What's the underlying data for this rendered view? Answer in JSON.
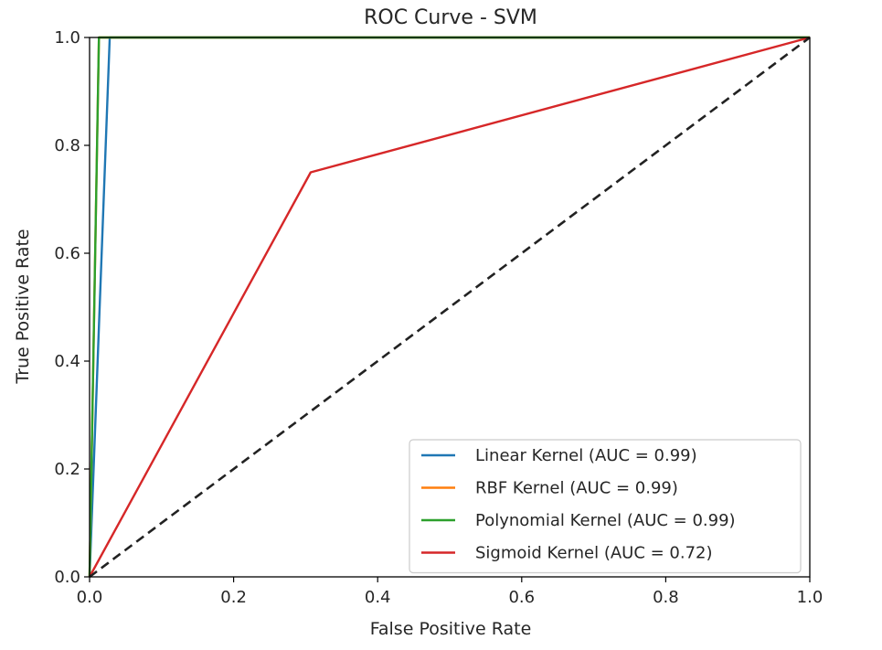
{
  "chart_data": {
    "type": "line",
    "title": "ROC Curve - SVM",
    "xlabel": "False Positive Rate",
    "ylabel": "True Positive Rate",
    "xlim": [
      0.0,
      1.0
    ],
    "ylim": [
      0.0,
      1.0
    ],
    "xticks": [
      "0.0",
      "0.2",
      "0.4",
      "0.6",
      "0.8",
      "1.0"
    ],
    "yticks": [
      "0.0",
      "0.2",
      "0.4",
      "0.6",
      "0.8",
      "1.0"
    ],
    "grid": false,
    "legend_position": "lower-right",
    "series": [
      {
        "name": "Linear Kernel (AUC = 0.99)",
        "color": "#1f77b4",
        "x": [
          0.0,
          0.028,
          1.0
        ],
        "y": [
          0.0,
          1.0,
          1.0
        ]
      },
      {
        "name": "RBF Kernel (AUC = 0.99)",
        "color": "#ff7f0e",
        "x": [
          0.0,
          0.013,
          1.0
        ],
        "y": [
          0.0,
          1.0,
          1.0
        ]
      },
      {
        "name": "Polynomial Kernel (AUC = 0.99)",
        "color": "#2ca02c",
        "x": [
          0.0,
          0.013,
          1.0
        ],
        "y": [
          0.0,
          1.0,
          1.0
        ]
      },
      {
        "name": "Sigmoid Kernel (AUC = 0.72)",
        "color": "#d62728",
        "x": [
          0.0,
          0.307,
          1.0
        ],
        "y": [
          0.0,
          0.75,
          1.0
        ]
      }
    ],
    "reference_line": {
      "x": [
        0.0,
        1.0
      ],
      "y": [
        0.0,
        1.0
      ],
      "color": "#222222",
      "style": "dashed"
    }
  }
}
